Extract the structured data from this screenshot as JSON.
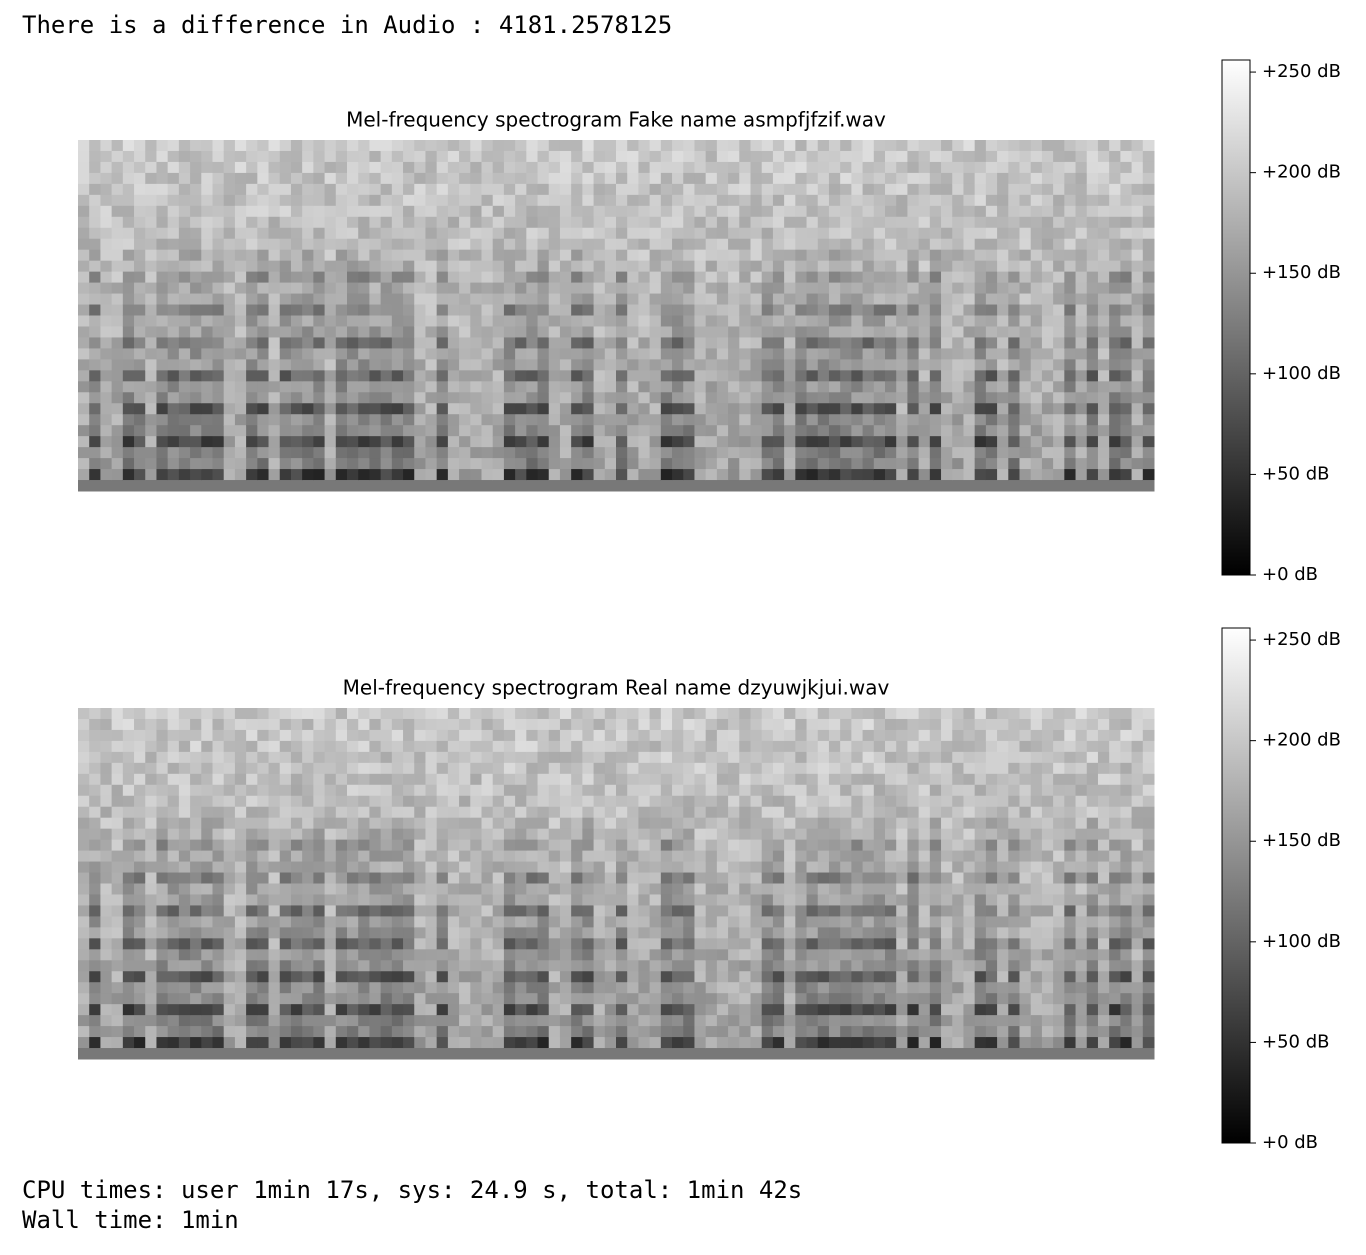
{
  "stdout": "There is a difference in Audio : 4181.2578125",
  "chart_data": [
    {
      "type": "heatmap",
      "title": "Mel-frequency spectrogram Fake name asmpfjfzif.wav",
      "clim": [
        0,
        256
      ],
      "colorbar_ticks": [
        {
          "value": 0,
          "label": "+0 dB"
        },
        {
          "value": 50,
          "label": "+50 dB"
        },
        {
          "value": 100,
          "label": "+100 dB"
        },
        {
          "value": 150,
          "label": "+150 dB"
        },
        {
          "value": 200,
          "label": "+200 dB"
        },
        {
          "value": 250,
          "label": "+250 dB"
        }
      ]
    },
    {
      "type": "heatmap",
      "title": "Mel-frequency spectrogram Real name dzyuwjkjui.wav",
      "clim": [
        0,
        256
      ],
      "colorbar_ticks": [
        {
          "value": 0,
          "label": "+0 dB"
        },
        {
          "value": 50,
          "label": "+50 dB"
        },
        {
          "value": 100,
          "label": "+100 dB"
        },
        {
          "value": 150,
          "label": "+150 dB"
        },
        {
          "value": 200,
          "label": "+200 dB"
        },
        {
          "value": 250,
          "label": "+250 dB"
        }
      ]
    }
  ],
  "timing": [
    "CPU times: user 1min 17s, sys: 24.9 s, total: 1min 42s",
    "Wall time: 1min"
  ]
}
